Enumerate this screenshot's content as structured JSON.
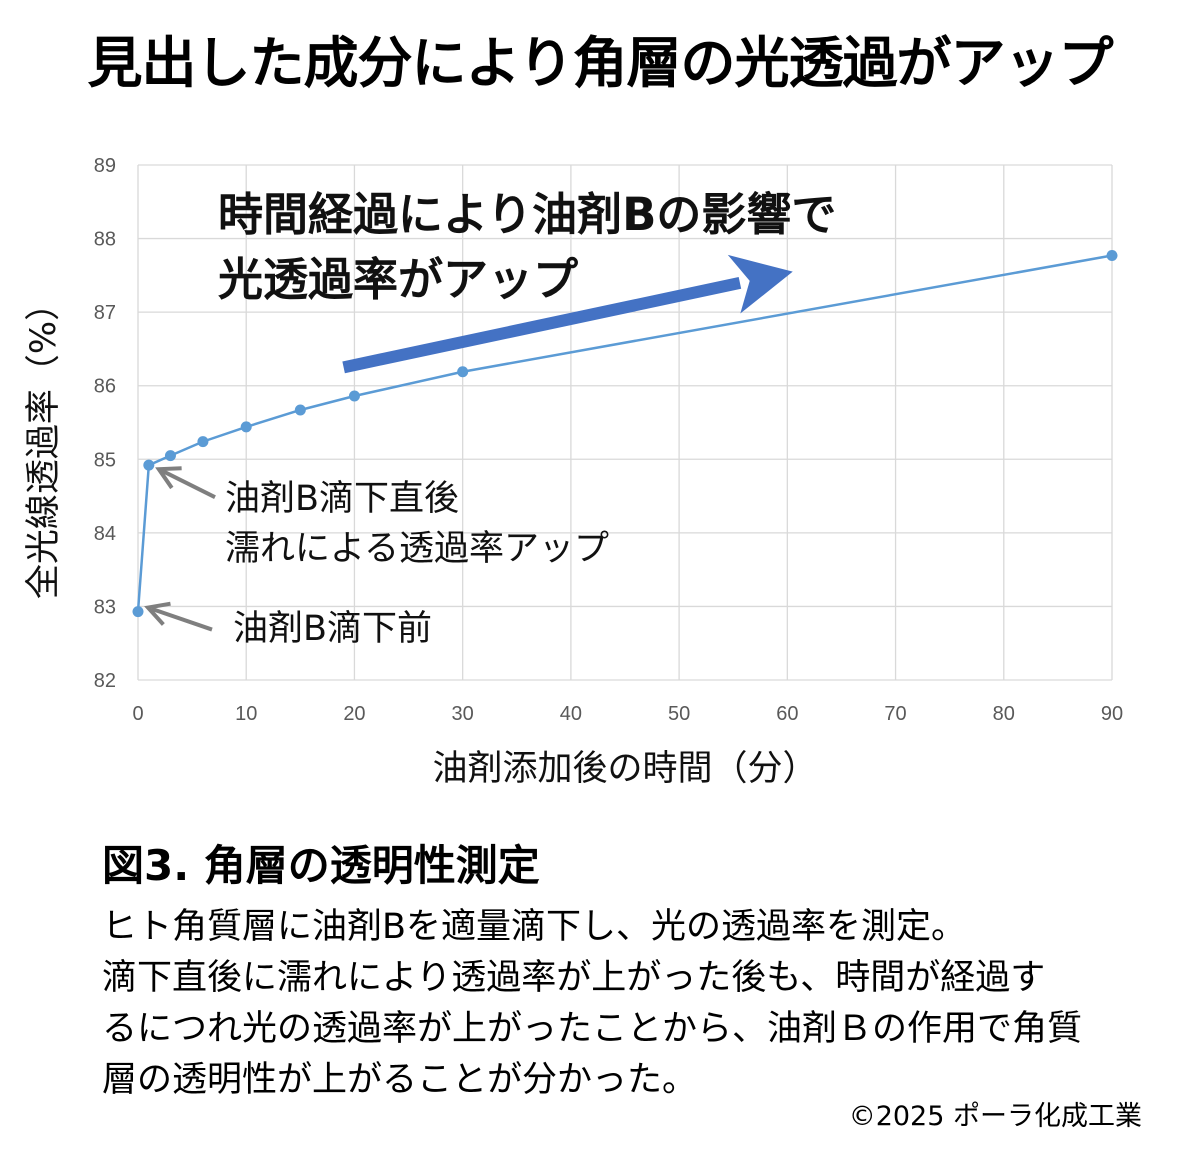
{
  "headline": "見出した成分により角層の光透過がアップ",
  "chart_data": {
    "type": "line",
    "xlabel": "油剤添加後の時間（分）",
    "ylabel": "全光線透過率（%）",
    "xlim": [
      0,
      90
    ],
    "ylim": [
      82,
      89
    ],
    "x_ticks": [
      "0",
      "10",
      "20",
      "30",
      "40",
      "50",
      "60",
      "70",
      "80",
      "90"
    ],
    "y_ticks": [
      "82",
      "83",
      "84",
      "85",
      "86",
      "87",
      "88",
      "89"
    ],
    "grid": true,
    "legend": "none",
    "series": [
      {
        "color": "#5b9bd5",
        "x": [
          0,
          1,
          3,
          6,
          10,
          15,
          20,
          30,
          90
        ],
        "y": [
          82.93,
          84.92,
          85.05,
          85.24,
          85.44,
          85.67,
          85.86,
          86.19,
          87.77
        ]
      }
    ],
    "annotations": {
      "trend_line1": "時間経過により油剤Bの影響で",
      "trend_line2": "光透過率がアップ",
      "trend_arrow_color": "#4472c4",
      "after_line1": "油剤B滴下直後",
      "after_line2": "濡れによる透過率アップ",
      "before": "油剤B滴下前"
    }
  },
  "figure": {
    "title": "図3.  角層の透明性測定",
    "caption_lines": [
      "ヒト角質層に油剤Bを適量滴下し、光の透過率を測定。",
      "滴下直後に濡れにより透過率が上がった後も、時間が経過す",
      "るにつれ光の透過率が上がったことから、油剤Ｂの作用で角質",
      "層の透明性が上がることが分かった。"
    ]
  },
  "copyright": "©2025 ポーラ化成工業"
}
